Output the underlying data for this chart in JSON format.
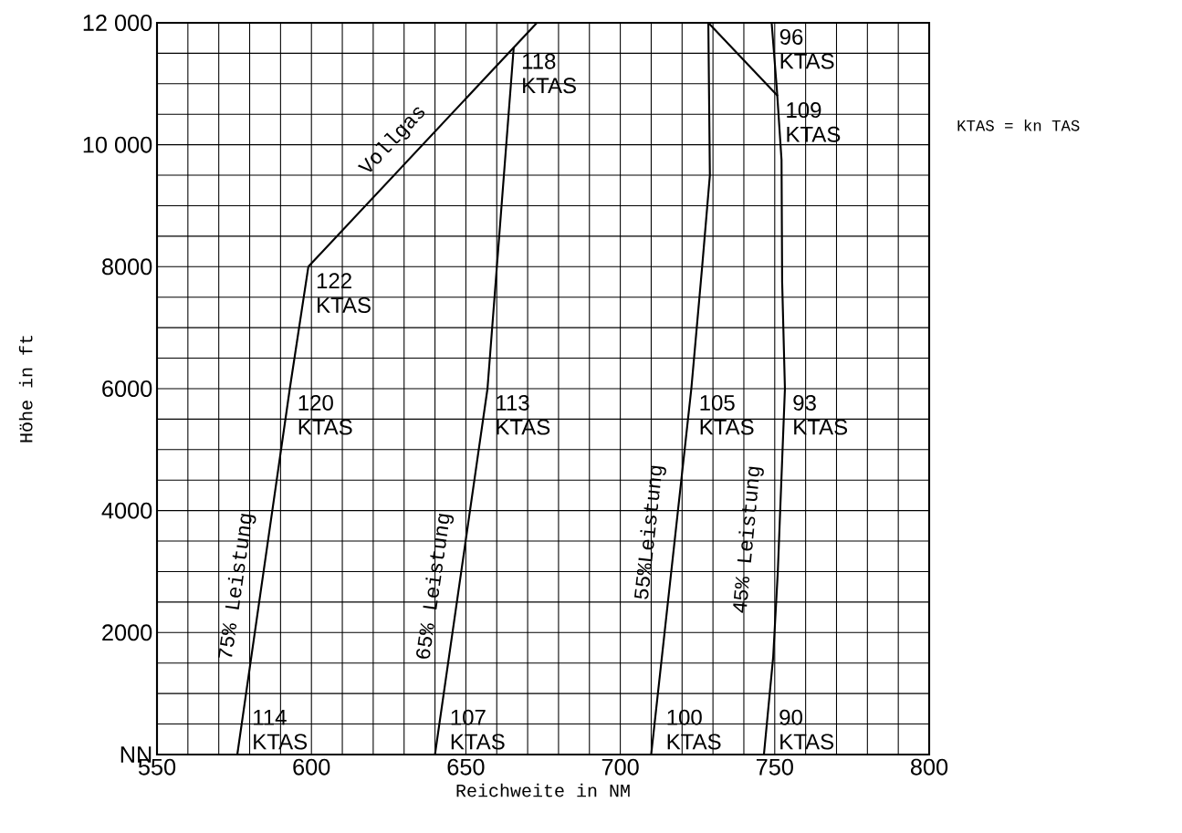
{
  "chart_data": {
    "type": "line",
    "xlabel": "Reichweite in NM",
    "ylabel": "Höhe in ft",
    "xlim": [
      550,
      800
    ],
    "ylim": [
      0,
      12000
    ],
    "xticks": [
      550,
      600,
      650,
      700,
      750,
      800
    ],
    "yticks": [
      {
        "value": 0,
        "label": "NN"
      },
      2000,
      4000,
      6000,
      8000,
      {
        "value": 10000,
        "label": "10 000"
      },
      {
        "value": 12000,
        "label": "12 000"
      }
    ],
    "grid": true,
    "legend": false,
    "marker": "none",
    "line_style": "solid",
    "series": [
      {
        "name": "75% Leistung",
        "color": "#000000",
        "x": [
          576,
          593,
          599
        ],
        "values": [
          0,
          6000,
          8000
        ]
      },
      {
        "name": "Vollgas",
        "color": "#000000",
        "x": [
          599,
          673
        ],
        "values": [
          8000,
          12000
        ]
      },
      {
        "name": "65% Leistung",
        "color": "#000000",
        "x": [
          640,
          657,
          665.5
        ],
        "values": [
          0,
          6000,
          11600
        ]
      },
      {
        "name": "55%Leistung",
        "color": "#000000",
        "x": [
          710,
          723,
          726.5,
          729,
          728.5
        ],
        "values": [
          0,
          6000,
          8000,
          9500,
          12000
        ]
      },
      {
        "name": "45% Leistung",
        "color": "#000000",
        "x": [
          746.5,
          749.5,
          751,
          753.3,
          752.4,
          752.2,
          750.7,
          749
        ],
        "values": [
          0,
          1600,
          3000,
          6000,
          7750,
          9750,
          10900,
          12000
        ]
      },
      {
        "color": "#000000",
        "x": [
          728.5,
          751
        ],
        "values": [
          12000,
          10800
        ]
      }
    ],
    "annotations": [
      {
        "text": "114 KTAS",
        "x": 576,
        "y": 0
      },
      {
        "text": "107 KTAS",
        "x": 640,
        "y": 0
      },
      {
        "text": "100 KTAS",
        "x": 710,
        "y": 0
      },
      {
        "text": "90 KTAS",
        "x": 746.5,
        "y": 0
      },
      {
        "text": "120 KTAS",
        "x": 593,
        "y": 6000
      },
      {
        "text": "113 KTAS",
        "x": 657,
        "y": 6000
      },
      {
        "text": "105 KTAS",
        "x": 723,
        "y": 6000
      },
      {
        "text": "93 KTAS",
        "x": 753.3,
        "y": 6000
      },
      {
        "text": "122 KTAS",
        "x": 599,
        "y": 8000
      },
      {
        "text": "118 KTAS",
        "x": 665.5,
        "y": 11600
      },
      {
        "text": "96 KTAS",
        "x": 749,
        "y": 12000
      },
      {
        "text": "109 KTAS",
        "x": 751,
        "y": 10800
      },
      "KTAS = kn TAS"
    ]
  }
}
